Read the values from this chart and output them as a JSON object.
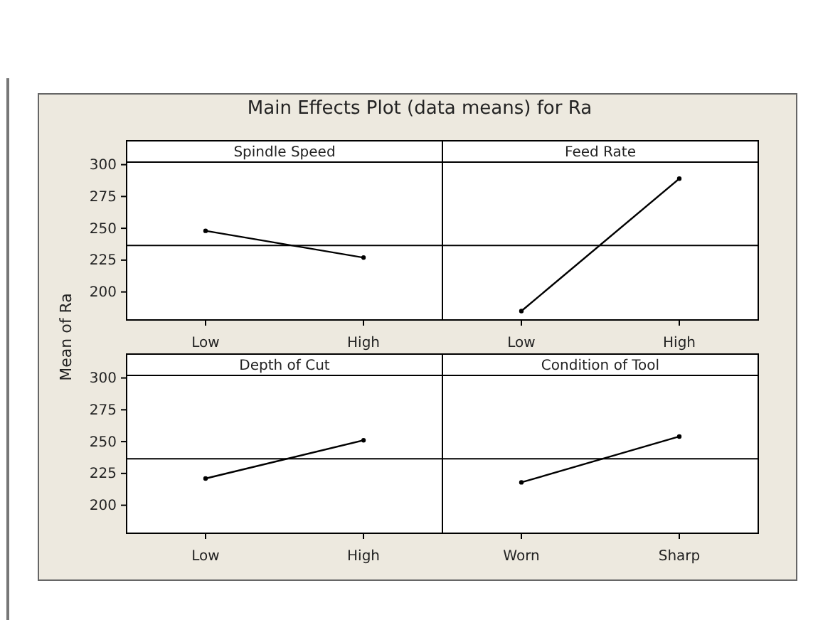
{
  "chart_data": [
    {
      "type": "line",
      "title": "Spindle Speed",
      "ylabel": "Mean of Ra",
      "annotations": [
        "Main Effects Plot (data means) for Ra"
      ],
      "categories": [
        "Low",
        "High"
      ],
      "values": [
        248,
        227
      ],
      "color": "#000000",
      "marker": "circle",
      "ylim": [
        178,
        302
      ],
      "yticks": [
        200,
        225,
        250,
        275,
        300
      ],
      "ref_lines": [
        {
          "axis": "y",
          "value": 236.5,
          "color": "#000000"
        }
      ]
    },
    {
      "type": "line",
      "title": "Feed Rate",
      "categories": [
        "Low",
        "High"
      ],
      "values": [
        185,
        289
      ],
      "color": "#000000",
      "marker": "circle",
      "ylim": [
        178,
        302
      ],
      "yticks": [
        200,
        225,
        250,
        275,
        300
      ],
      "tick_labels": "x",
      "ref_lines": [
        {
          "axis": "y",
          "value": 236.5,
          "color": "#000000"
        }
      ]
    },
    {
      "type": "line",
      "title": "Depth of Cut",
      "categories": [
        "Low",
        "High"
      ],
      "values": [
        221,
        251
      ],
      "color": "#000000",
      "marker": "circle",
      "ylim": [
        178,
        302
      ],
      "yticks": [
        200,
        225,
        250,
        275,
        300
      ],
      "ref_lines": [
        {
          "axis": "y",
          "value": 236.5,
          "color": "#000000"
        }
      ]
    },
    {
      "type": "line",
      "title": "Condition of Tool",
      "categories": [
        "Worn",
        "Sharp"
      ],
      "values": [
        218,
        254
      ],
      "color": "#000000",
      "marker": "circle",
      "ylim": [
        178,
        302
      ],
      "yticks": [
        200,
        225,
        250,
        275,
        300
      ],
      "tick_labels": "x",
      "ref_lines": [
        {
          "axis": "y",
          "value": 236.5,
          "color": "#000000"
        }
      ]
    }
  ]
}
